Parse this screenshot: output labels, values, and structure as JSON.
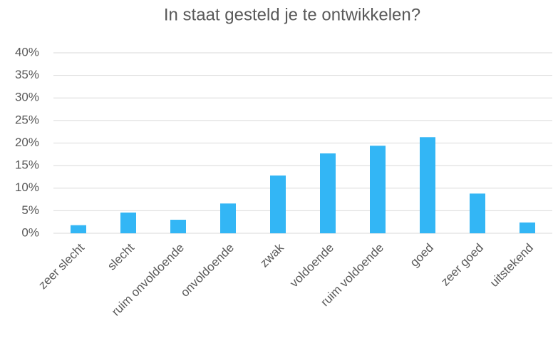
{
  "chart_data": {
    "type": "bar",
    "title": "In staat gesteld je te ontwikkelen?",
    "categories": [
      "zeer slecht",
      "slecht",
      "ruim onvoldoende",
      "onvoldoende",
      "zwak",
      "voldoende",
      "ruim voldoende",
      "goed",
      "zeer goed",
      "uitstekend"
    ],
    "values": [
      1.8,
      4.6,
      3.0,
      6.6,
      12.8,
      17.7,
      19.4,
      21.3,
      8.8,
      2.4
    ],
    "color": "#33b6f5",
    "ylim": [
      0,
      40
    ],
    "yticks": [
      {
        "value": 0,
        "label": "0%"
      },
      {
        "value": 5,
        "label": "5%"
      },
      {
        "value": 10,
        "label": "10%"
      },
      {
        "value": 15,
        "label": "15%"
      },
      {
        "value": 20,
        "label": "20%"
      },
      {
        "value": 25,
        "label": "25%"
      },
      {
        "value": 30,
        "label": "30%"
      },
      {
        "value": 35,
        "label": "35%"
      },
      {
        "value": 40,
        "label": "40%"
      }
    ],
    "grid": true
  }
}
